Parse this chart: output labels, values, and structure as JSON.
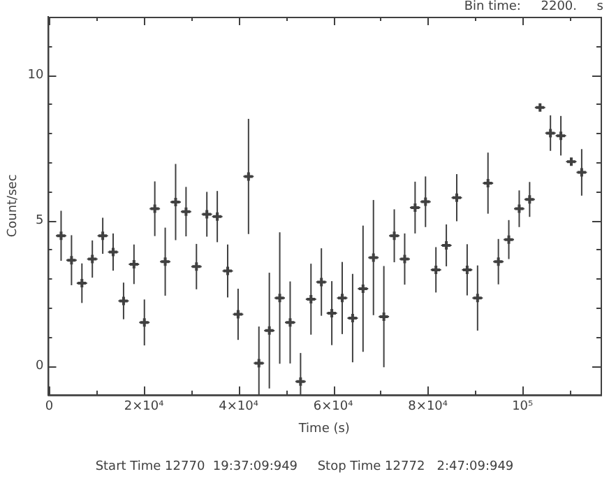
{
  "chart_data": {
    "type": "scatter",
    "xlabel": "Time (s)",
    "ylabel": "Count/sec",
    "annotations": [
      "Bin time:     2200.     s",
      "Start Time 12770  19:37:09:949     Stop Time 12772   2:47:09:949"
    ],
    "x": [
      2500,
      4700,
      6900,
      9100,
      11300,
      13500,
      15700,
      17900,
      20100,
      22300,
      24500,
      26700,
      28900,
      31100,
      33300,
      35500,
      37700,
      39900,
      42100,
      44300,
      46500,
      48700,
      50900,
      53100,
      55300,
      57500,
      59700,
      61900,
      64100,
      66300,
      68500,
      70700,
      72900,
      75100,
      77300,
      79500,
      81700,
      83900,
      86100,
      88300,
      90500,
      92700,
      94900,
      97100,
      99300,
      101500,
      103700,
      105900,
      108100,
      110300,
      112500
    ],
    "series": [
      {
        "color": "#404040",
        "values": [
          4.47,
          3.63,
          2.84,
          3.67,
          4.47,
          3.91,
          2.23,
          3.49,
          1.49,
          5.4,
          3.58,
          5.63,
          5.3,
          3.41,
          5.21,
          5.13,
          3.26,
          1.77,
          6.51,
          0.09,
          1.21,
          2.33,
          1.49,
          -0.54,
          2.29,
          2.88,
          1.81,
          2.33,
          1.64,
          2.65,
          3.72,
          1.69,
          4.47,
          3.67,
          5.44,
          5.64,
          3.3,
          4.14,
          5.78,
          3.3,
          2.33,
          6.28,
          3.58,
          4.34,
          5.4,
          5.72,
          8.88,
          8.0,
          7.91,
          7.02,
          6.65
        ],
        "errors": [
          0.86,
          0.86,
          0.68,
          0.64,
          0.62,
          0.64,
          0.63,
          0.68,
          0.79,
          0.94,
          1.17,
          1.31,
          0.85,
          0.78,
          0.77,
          0.88,
          0.91,
          0.88,
          1.98,
          [
            -1,
            1.35
          ],
          1.99,
          2.26,
          1.41,
          [
            -1,
            0.44
          ],
          1.22,
          1.16,
          1.1,
          1.24,
          1.52,
          2.17,
          1.98,
          1.74,
          0.91,
          0.88,
          0.89,
          0.87,
          0.78,
          0.72,
          0.81,
          0.88,
          1.12,
          1.05,
          0.78,
          0.67,
          0.63,
          0.6,
          null,
          0.61,
          0.68,
          null,
          0.8
        ],
        "xerrors": [
          1100,
          1100,
          1100,
          1100,
          1100,
          1100,
          1100,
          1100,
          1100,
          1100,
          1100,
          1100,
          1100,
          1100,
          1100,
          1100,
          1100,
          1100,
          1100,
          1100,
          1100,
          1100,
          1100,
          1100,
          1100,
          1100,
          1100,
          1100,
          1100,
          1100,
          1100,
          1100,
          1100,
          1100,
          1100,
          1100,
          1100,
          1100,
          1100,
          1100,
          1100,
          1100,
          1100,
          1100,
          1100,
          1100,
          1100,
          1100,
          1100,
          1100,
          1100
        ]
      }
    ],
    "xlim": [
      -300,
      116500
    ],
    "ylim": [
      -1,
      12
    ],
    "xticks": [
      0,
      {
        "value": 10000,
        "label": null
      },
      {
        "value": 20000,
        "label": "2×10⁴"
      },
      {
        "value": 30000,
        "label": null
      },
      {
        "value": 40000,
        "label": "4×10⁴"
      },
      {
        "value": 50000,
        "label": null
      },
      {
        "value": 60000,
        "label": "6×10⁴"
      },
      {
        "value": 70000,
        "label": null
      },
      {
        "value": 80000,
        "label": "8×10⁴"
      },
      {
        "value": 90000,
        "label": null
      },
      {
        "value": 100000,
        "label": "10⁵"
      },
      {
        "value": 110000,
        "label": null
      }
    ],
    "yticks": [
      {
        "value": -1,
        "label": null
      },
      0,
      {
        "value": 1,
        "label": null
      },
      {
        "value": 2,
        "label": null
      },
      {
        "value": 3,
        "label": null
      },
      {
        "value": 4,
        "label": null
      },
      5,
      {
        "value": 6,
        "label": null
      },
      {
        "value": 7,
        "label": null
      },
      {
        "value": 8,
        "label": null
      },
      {
        "value": 9,
        "label": null
      },
      10,
      {
        "value": 11,
        "label": null
      },
      {
        "value": 12,
        "label": null
      }
    ],
    "grid": false,
    "legend": false,
    "marker": "cross"
  }
}
